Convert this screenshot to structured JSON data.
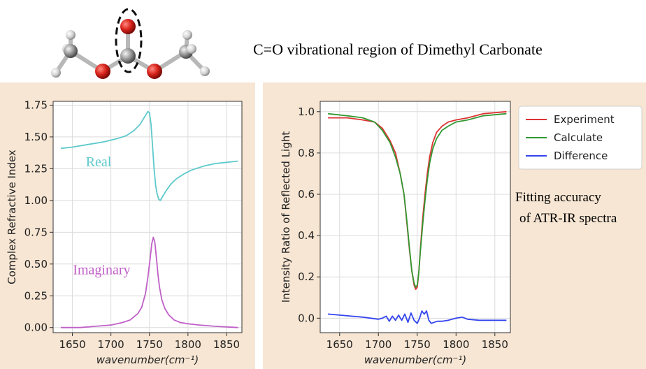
{
  "header": {
    "title": "C=O vibrational region of Dimethyl Carbonate"
  },
  "side_note": {
    "line1": "Fitting accuracy",
    "line2": "of ATR-IR spectra"
  },
  "colors": {
    "real": "#5ec9cc",
    "imaginary": "#c060c8",
    "experiment": "#dd3333",
    "calculate": "#339933",
    "difference": "#3344ee",
    "panel_bg": "#f7e6d3",
    "grid": "#dcdcdc"
  },
  "chart_data": [
    {
      "type": "line",
      "xlabel": "wavenumber(cm⁻¹)",
      "ylabel": "Complex Refractive Index",
      "xlim": [
        1625,
        1870
      ],
      "ylim": [
        -0.04,
        1.78
      ],
      "xticks": [
        1650,
        1700,
        1750,
        1800,
        1850
      ],
      "yticks": [
        0.0,
        0.25,
        0.5,
        0.75,
        1.0,
        1.25,
        1.5,
        1.75
      ],
      "ytick_labels": [
        "0.00",
        "0.25",
        "0.50",
        "0.75",
        "1.00",
        "1.25",
        "1.50",
        "1.75"
      ],
      "grid": true,
      "series": [
        {
          "name": "Real",
          "x": [
            1635,
            1650,
            1670,
            1690,
            1710,
            1720,
            1730,
            1738,
            1743,
            1746,
            1748,
            1750,
            1752,
            1754,
            1756,
            1758,
            1760,
            1762,
            1764,
            1768,
            1772,
            1778,
            1785,
            1795,
            1805,
            1820,
            1835,
            1850,
            1865
          ],
          "values": [
            1.41,
            1.42,
            1.44,
            1.46,
            1.49,
            1.51,
            1.55,
            1.6,
            1.65,
            1.68,
            1.7,
            1.69,
            1.6,
            1.43,
            1.25,
            1.12,
            1.05,
            1.01,
            1.0,
            1.04,
            1.08,
            1.13,
            1.17,
            1.21,
            1.24,
            1.27,
            1.29,
            1.3,
            1.31
          ]
        },
        {
          "name": "Imaginary",
          "x": [
            1635,
            1660,
            1680,
            1700,
            1715,
            1725,
            1735,
            1740,
            1745,
            1748,
            1751,
            1753,
            1755,
            1757,
            1759,
            1761,
            1763,
            1766,
            1770,
            1775,
            1782,
            1790,
            1800,
            1815,
            1835,
            1865
          ],
          "values": [
            0.0,
            0.0,
            0.01,
            0.02,
            0.04,
            0.06,
            0.11,
            0.16,
            0.27,
            0.4,
            0.55,
            0.66,
            0.71,
            0.67,
            0.55,
            0.42,
            0.32,
            0.22,
            0.15,
            0.1,
            0.06,
            0.04,
            0.03,
            0.02,
            0.01,
            0.0
          ]
        }
      ]
    },
    {
      "type": "line",
      "xlabel": "wavenumber(cm⁻¹)",
      "ylabel": "Intensity Ratio of Reflected Light",
      "xlim": [
        1625,
        1870
      ],
      "ylim": [
        -0.07,
        1.05
      ],
      "xticks": [
        1650,
        1700,
        1750,
        1800,
        1850
      ],
      "yticks": [
        0.0,
        0.2,
        0.4,
        0.6,
        0.8,
        1.0
      ],
      "ytick_labels": [
        "0.0",
        "0.2",
        "0.4",
        "0.6",
        "0.8",
        "1.0"
      ],
      "grid": true,
      "legend_position": "top-right",
      "series": [
        {
          "name": "Experiment",
          "x": [
            1635,
            1660,
            1680,
            1695,
            1705,
            1715,
            1722,
            1728,
            1733,
            1737,
            1740,
            1743,
            1746,
            1748,
            1750,
            1752,
            1754,
            1757,
            1760,
            1763,
            1766,
            1770,
            1775,
            1782,
            1790,
            1800,
            1815,
            1835,
            1865
          ],
          "values": [
            0.97,
            0.97,
            0.96,
            0.95,
            0.92,
            0.86,
            0.8,
            0.7,
            0.6,
            0.45,
            0.33,
            0.23,
            0.16,
            0.14,
            0.15,
            0.22,
            0.33,
            0.48,
            0.6,
            0.7,
            0.78,
            0.85,
            0.9,
            0.93,
            0.95,
            0.96,
            0.97,
            0.99,
            1.0
          ]
        },
        {
          "name": "Calculate",
          "x": [
            1635,
            1660,
            1680,
            1695,
            1705,
            1715,
            1722,
            1728,
            1733,
            1737,
            1740,
            1743,
            1746,
            1748,
            1750,
            1752,
            1754,
            1757,
            1760,
            1763,
            1766,
            1770,
            1775,
            1782,
            1790,
            1800,
            1815,
            1835,
            1865
          ],
          "values": [
            0.99,
            0.98,
            0.97,
            0.95,
            0.91,
            0.85,
            0.78,
            0.7,
            0.6,
            0.46,
            0.34,
            0.23,
            0.17,
            0.15,
            0.16,
            0.22,
            0.32,
            0.45,
            0.57,
            0.67,
            0.75,
            0.82,
            0.87,
            0.91,
            0.93,
            0.95,
            0.96,
            0.98,
            0.99
          ]
        },
        {
          "name": "Difference",
          "x": [
            1635,
            1650,
            1665,
            1680,
            1690,
            1700,
            1705,
            1710,
            1714,
            1718,
            1722,
            1726,
            1730,
            1734,
            1738,
            1742,
            1746,
            1750,
            1753,
            1756,
            1759,
            1762,
            1765,
            1768,
            1772,
            1776,
            1782,
            1790,
            1800,
            1808,
            1815,
            1830,
            1850,
            1865
          ],
          "values": [
            0.02,
            0.015,
            0.01,
            0.005,
            0.0,
            -0.005,
            0.0,
            0.01,
            -0.015,
            0.01,
            -0.01,
            0.015,
            -0.01,
            0.02,
            -0.02,
            0.025,
            -0.01,
            -0.025,
            0.0,
            0.035,
            0.02,
            0.035,
            -0.01,
            -0.025,
            -0.02,
            -0.015,
            -0.015,
            -0.01,
            0.0,
            0.005,
            -0.005,
            -0.01,
            -0.01,
            -0.01
          ]
        }
      ]
    }
  ]
}
